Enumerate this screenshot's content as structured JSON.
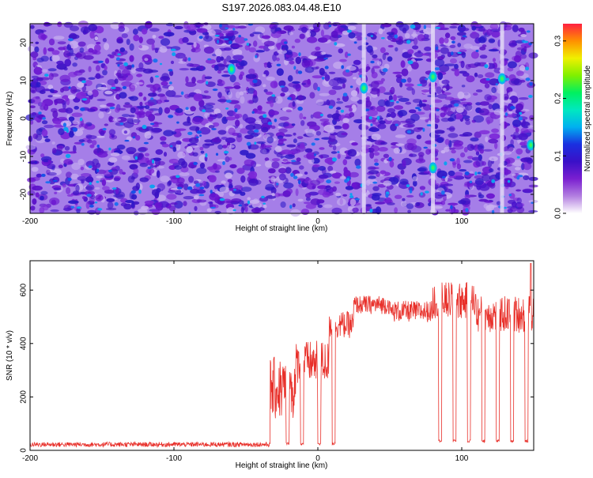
{
  "title": "S197.2026.083.04.48.E10",
  "chart_data": [
    {
      "type": "heatmap",
      "title": "S197.2026.083.04.48.E10",
      "xlabel": "Height of straight line (km)",
      "ylabel": "Frequency (Hz)",
      "xlim": [
        -200,
        150
      ],
      "ylim": [
        -25,
        25
      ],
      "xticks": [
        -200,
        -100,
        0,
        100
      ],
      "xtick_labels": [
        "-200",
        "-100",
        "0",
        "100"
      ],
      "yticks": [
        -20,
        -10,
        0,
        10,
        20
      ],
      "ytick_labels": [
        "-20",
        "-10",
        "0",
        "10",
        "20"
      ],
      "colorbar": {
        "label": "Normalized spectral amplitude",
        "range": [
          0.0,
          0.33
        ],
        "ticks": [
          0.0,
          0.1,
          0.2,
          0.3
        ],
        "tick_labels": [
          "0.0",
          "0.1",
          "0.2",
          "0.3"
        ],
        "colors": [
          "#ffffff",
          "#b37fe0",
          "#7a1fd0",
          "#3a10c8",
          "#1a30e0",
          "#00b0f0",
          "#00e8c0",
          "#00f060",
          "#80f000",
          "#f0f000",
          "#ff9000",
          "#ff2040"
        ]
      },
      "bright_spots": [
        {
          "x": 32,
          "y": 8,
          "value": 0.2
        },
        {
          "x": 80,
          "y": 11,
          "value": 0.17
        },
        {
          "x": 128,
          "y": 10.5,
          "value": 0.2
        },
        {
          "x": 80,
          "y": -13,
          "value": 0.16
        },
        {
          "x": -60,
          "y": 13,
          "value": 0.12
        },
        {
          "x": 148,
          "y": -7,
          "value": 0.18
        }
      ],
      "gap_columns_x": [
        32,
        80,
        128
      ]
    },
    {
      "type": "line",
      "xlabel": "Height of straight line (km)",
      "ylabel": "SNR (10 * v/v)",
      "xlim": [
        -200,
        150
      ],
      "ylim": [
        0,
        710
      ],
      "xticks": [
        -200,
        -100,
        0,
        100
      ],
      "xtick_labels": [
        "-200",
        "-100",
        "0",
        "100"
      ],
      "yticks": [
        0,
        200,
        400,
        600
      ],
      "ytick_labels": [
        "0",
        "200",
        "400",
        "600"
      ],
      "line_color": "#e8302a",
      "segments": [
        {
          "x0": -200,
          "x1": -33,
          "level": 22,
          "noise": 9
        },
        {
          "x0": -33,
          "x1": -15,
          "level": 230,
          "noise": 120
        },
        {
          "x0": -15,
          "x1": 8,
          "level": 330,
          "noise": 80
        },
        {
          "x0": 8,
          "x1": 25,
          "level": 470,
          "noise": 50
        },
        {
          "x0": 25,
          "x1": 50,
          "level": 545,
          "noise": 35
        },
        {
          "x0": 50,
          "x1": 80,
          "level": 520,
          "noise": 40
        },
        {
          "x0": 80,
          "x1": 110,
          "level": 560,
          "noise": 70
        },
        {
          "x0": 110,
          "x1": 150,
          "level": 510,
          "noise": 70
        }
      ],
      "dropouts": [
        {
          "x0": -22,
          "x1": -20,
          "value": 20
        },
        {
          "x0": -12,
          "x1": -10,
          "value": 20
        },
        {
          "x0": 0,
          "x1": 2,
          "value": 20
        },
        {
          "x0": 10,
          "x1": 12,
          "value": 20
        },
        {
          "x0": 84,
          "x1": 86,
          "value": 30
        },
        {
          "x0": 94,
          "x1": 96,
          "value": 30
        },
        {
          "x0": 104,
          "x1": 106,
          "value": 30
        },
        {
          "x0": 114,
          "x1": 116,
          "value": 30
        },
        {
          "x0": 124,
          "x1": 126,
          "value": 30
        },
        {
          "x0": 134,
          "x1": 136,
          "value": 30
        },
        {
          "x0": 144,
          "x1": 146,
          "value": 30
        }
      ],
      "peak_value": 700
    }
  ]
}
